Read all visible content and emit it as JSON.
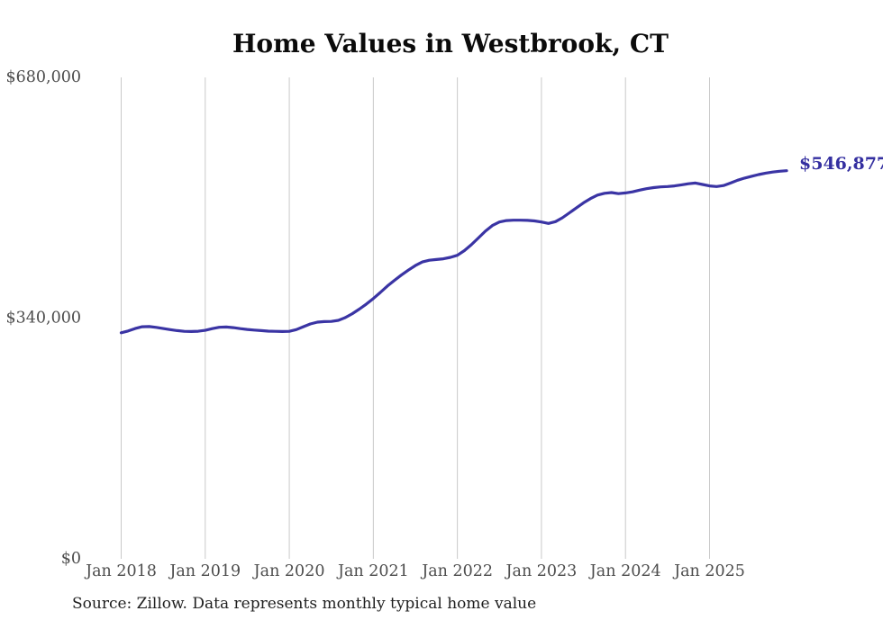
{
  "page": {
    "background_color": "#ffffff"
  },
  "chart": {
    "title": "Home Values in Westbrook, CT",
    "end_label": "$546,877",
    "source": "Source: Zillow. Data represents monthly typical home value",
    "colors": {
      "line": "#3a34a4",
      "end_label": "#342fa0",
      "grid": "#c9c9c9",
      "axis_text": "#4d4d4d",
      "title_text": "#0b0b0b",
      "source_text": "#1f1f1f"
    }
  },
  "chart_data": {
    "type": "line",
    "title": "Home Values in Westbrook, CT",
    "xlabel": "",
    "ylabel": "",
    "ylim": [
      0,
      680000
    ],
    "y_ticks": [
      0,
      340000,
      680000
    ],
    "y_tick_labels": [
      "$0",
      "$340,000",
      "$680,000"
    ],
    "x_tick_labels": [
      "Jan 2018",
      "Jan 2019",
      "Jan 2020",
      "Jan 2021",
      "Jan 2022",
      "Jan 2023",
      "Jan 2024",
      "Jan 2025"
    ],
    "grid": "vertical-only",
    "legend": "none",
    "frequency": "monthly",
    "final_value": 546877,
    "final_value_label": "$546,877",
    "source": "Source: Zillow. Data represents monthly typical home value",
    "months": [
      "2018-01",
      "2018-02",
      "2018-03",
      "2018-04",
      "2018-05",
      "2018-06",
      "2018-07",
      "2018-08",
      "2018-09",
      "2018-10",
      "2018-11",
      "2018-12",
      "2019-01",
      "2019-02",
      "2019-03",
      "2019-04",
      "2019-05",
      "2019-06",
      "2019-07",
      "2019-08",
      "2019-09",
      "2019-10",
      "2019-11",
      "2019-12",
      "2020-01",
      "2020-02",
      "2020-03",
      "2020-04",
      "2020-05",
      "2020-06",
      "2020-07",
      "2020-08",
      "2020-09",
      "2020-10",
      "2020-11",
      "2020-12",
      "2021-01",
      "2021-02",
      "2021-03",
      "2021-04",
      "2021-05",
      "2021-06",
      "2021-07",
      "2021-08",
      "2021-09",
      "2021-10",
      "2021-11",
      "2021-12",
      "2022-01",
      "2022-02",
      "2022-03",
      "2022-04",
      "2022-05",
      "2022-06",
      "2022-07",
      "2022-08",
      "2022-09",
      "2022-10",
      "2022-11",
      "2022-12",
      "2023-01",
      "2023-02",
      "2023-03",
      "2023-04",
      "2023-05",
      "2023-06",
      "2023-07",
      "2023-08",
      "2023-09",
      "2023-10",
      "2023-11",
      "2023-12",
      "2024-01",
      "2024-02",
      "2024-03",
      "2024-04",
      "2024-05",
      "2024-06",
      "2024-07",
      "2024-08",
      "2024-09",
      "2024-10",
      "2024-11",
      "2024-12",
      "2025-01",
      "2025-02",
      "2025-03",
      "2025-04",
      "2025-05",
      "2025-06",
      "2025-07",
      "2025-08",
      "2025-09",
      "2025-10",
      "2025-11",
      "2025-12"
    ],
    "series": [
      {
        "name": "Typical home value",
        "values": [
          318000,
          320500,
          324000,
          326500,
          326800,
          325600,
          324000,
          322500,
          321000,
          320000,
          319800,
          320200,
          321500,
          323800,
          325800,
          326200,
          325300,
          323900,
          322700,
          321800,
          321000,
          320300,
          320000,
          319800,
          320000,
          322500,
          326500,
          330500,
          333000,
          333800,
          334000,
          335500,
          339500,
          345000,
          351500,
          358500,
          366500,
          375000,
          384000,
          392000,
          399500,
          406500,
          413000,
          418000,
          420500,
          421500,
          422500,
          424500,
          427500,
          434000,
          442500,
          452000,
          461500,
          469500,
          474500,
          476500,
          477000,
          477000,
          476800,
          476000,
          474500,
          472500,
          475000,
          480500,
          487500,
          494500,
          501500,
          507500,
          512500,
          515000,
          516000,
          514500,
          515500,
          517000,
          519500,
          521500,
          523000,
          524000,
          524500,
          525500,
          527000,
          528500,
          529500,
          527500,
          525500,
          524500,
          526000,
          529500,
          533500,
          536500,
          539000,
          541500,
          543500,
          545000,
          546200,
          546877
        ]
      }
    ]
  }
}
